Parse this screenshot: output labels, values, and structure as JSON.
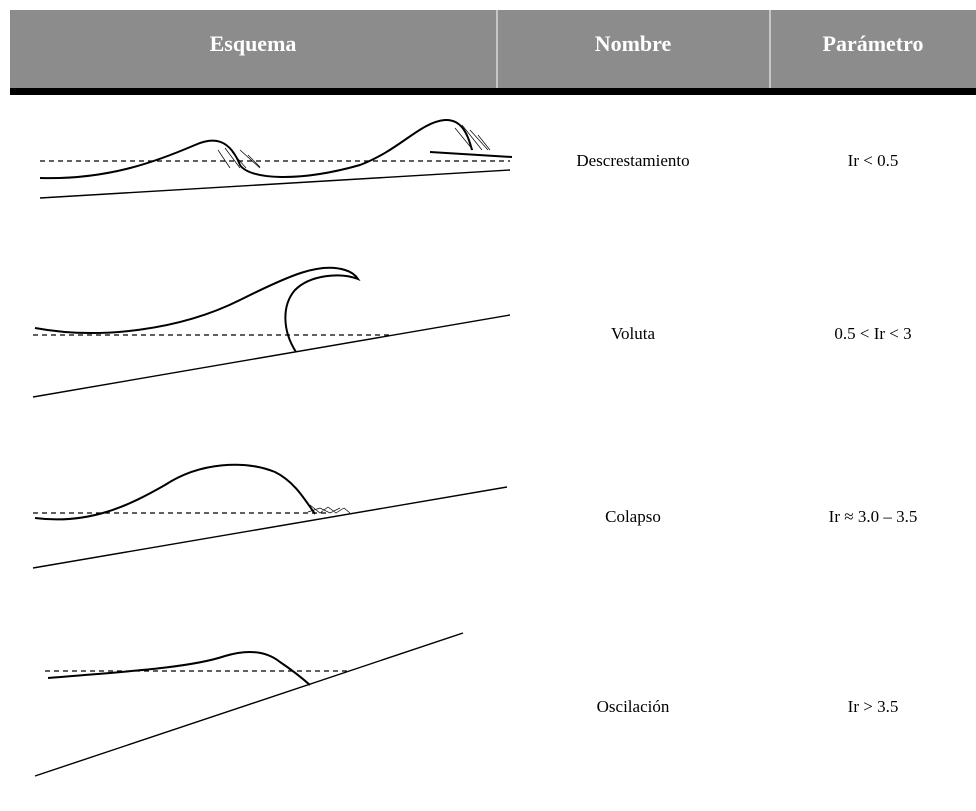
{
  "table": {
    "headers": [
      "Esquema",
      "Nombre",
      "Parámetro"
    ],
    "rows": [
      [
        "Descrestamiento",
        "Ir < 0.5"
      ],
      [
        "Voluta",
        "0.5 < Ir < 3"
      ],
      [
        "Colapso",
        "Ir ≈ 3.0 – 3.5"
      ],
      [
        "Oscilación",
        "Ir > 3.5"
      ]
    ]
  }
}
